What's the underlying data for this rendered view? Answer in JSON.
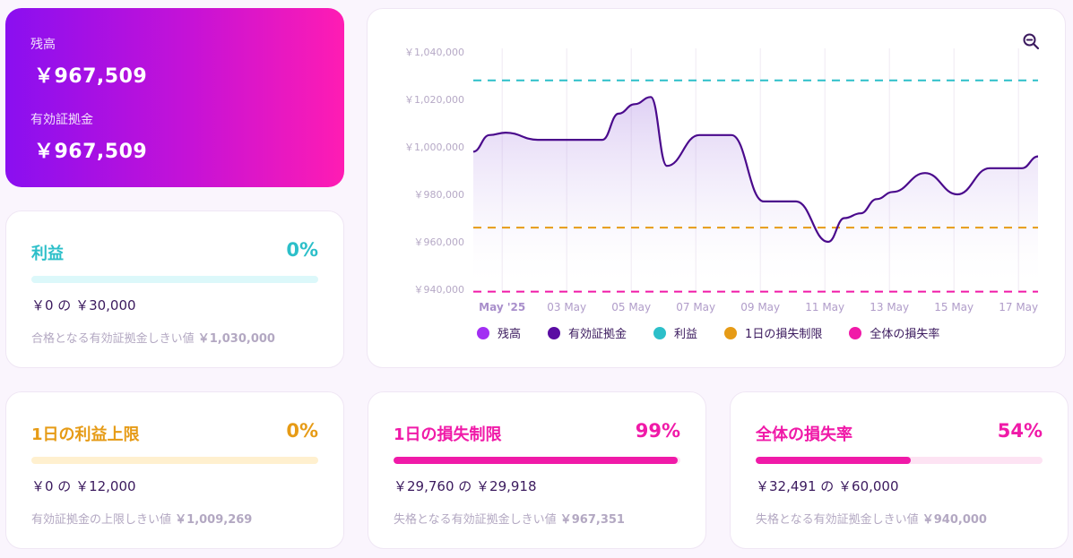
{
  "balance_card": {
    "balance_label": "残高",
    "balance_value": "￥967,509",
    "equity_label": "有効証拠金",
    "equity_value": "￥967,509"
  },
  "profit_card": {
    "title": "利益",
    "percent": "0%",
    "progress": 0,
    "amount": "￥0 の ￥30,000",
    "note_prefix": "合格となる有効証拠金しきい値",
    "note_value": "￥1,030,000",
    "color": "#2cbfc9",
    "track_color": "#dcf8fa"
  },
  "daily_profit_card": {
    "title": "1日の利益上限",
    "percent": "0%",
    "progress": 0,
    "amount": "￥0 の ￥12,000",
    "note_prefix": "有効証拠金の上限しきい値",
    "note_value": "￥1,009,269",
    "color": "#e69b16",
    "track_color": "#fff0cf"
  },
  "daily_loss_card": {
    "title": "1日の損失制限",
    "percent": "99%",
    "progress": 0.99,
    "amount": "￥29,760 の ￥29,918",
    "note_prefix": "失格となる有効証拠金しきい値",
    "note_value": "￥967,351",
    "color": "#f01aa8",
    "track_color": "#fde3f3"
  },
  "total_loss_card": {
    "title": "全体の損失率",
    "percent": "54%",
    "progress": 0.54,
    "amount": "￥32,491 の ￥60,000",
    "note_prefix": "失格となる有効証拠金しきい値",
    "note_value": "￥940,000",
    "color": "#f01aa8",
    "track_color": "#fde3f3"
  },
  "chart": {
    "zoom_icon": "zoom-out-icon"
  },
  "chart_data": {
    "type": "line",
    "x_tick_labels": [
      "May '25",
      "03 May",
      "05 May",
      "07 May",
      "09 May",
      "11 May",
      "13 May",
      "15 May",
      "17 May"
    ],
    "y_tick_labels": [
      "￥1,040,000",
      "￥1,020,000",
      "￥1,000,000",
      "￥980,000",
      "￥960,000",
      "￥940,000"
    ],
    "ylim": [
      940000,
      1040000
    ],
    "x": [
      "May 1",
      "May 1.5",
      "May 2",
      "May 3",
      "May 4",
      "May 5",
      "May 5.5",
      "May 6",
      "May 6.5",
      "May 7",
      "May 8",
      "May 9",
      "May 10",
      "May 10.5",
      "May 11",
      "May 12",
      "May 12.5",
      "May 13",
      "May 13.5",
      "May 14",
      "May 15",
      "May 16",
      "May 17",
      "May 18",
      "May 18.5"
    ],
    "series": [
      {
        "name": "有効証拠金",
        "color": "#4a0a8c",
        "values": [
          998000,
          1005000,
          1006000,
          1003000,
          1003000,
          1003000,
          1014000,
          1018000,
          1021000,
          992000,
          1005000,
          1005000,
          977000,
          977000,
          977000,
          960000,
          970000,
          972000,
          978000,
          981000,
          989000,
          980000,
          991000,
          991000,
          996000
        ]
      }
    ],
    "reference_lines": [
      {
        "name": "利益",
        "value": 1028000,
        "color": "#2cbfc9"
      },
      {
        "name": "1日の損失制限",
        "value": 966000,
        "color": "#e69b16"
      },
      {
        "name": "全体の損失率",
        "value": 939000,
        "color": "#f01aa8"
      }
    ],
    "legend": [
      {
        "name": "残高",
        "color": "#a22ff3"
      },
      {
        "name": "有効証拠金",
        "color": "#5a0ca3"
      },
      {
        "name": "利益",
        "color": "#2cbfc9"
      },
      {
        "name": "1日の損失制限",
        "color": "#e69b16"
      },
      {
        "name": "全体の損失率",
        "color": "#f01aa8"
      }
    ],
    "legend_position": "bottom",
    "grid": "vertical"
  }
}
